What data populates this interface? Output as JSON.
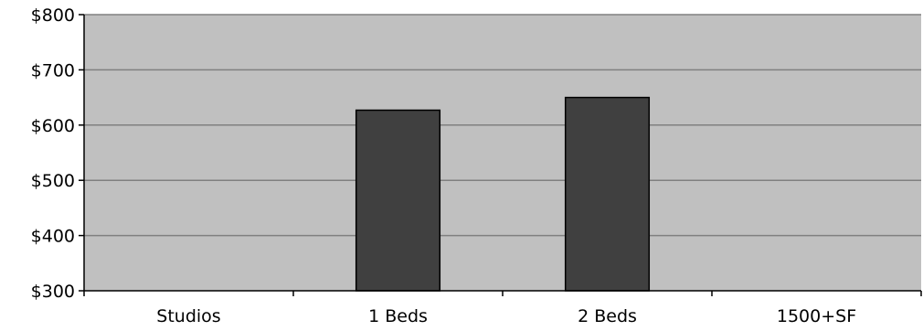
{
  "colors": {
    "plot_background": "#c0c0c0",
    "gridline": "#808080",
    "bar_fill": "#404040",
    "bar_stroke": "#000000",
    "axis": "#000000"
  },
  "chart_data": {
    "type": "bar",
    "title": "",
    "xlabel": "",
    "ylabel": "",
    "categories": [
      "Studios",
      "1 Beds",
      "2 Beds",
      "1500+SF"
    ],
    "values": [
      null,
      627,
      650,
      null
    ],
    "ylim": [
      300,
      800
    ],
    "yticks": [
      300,
      400,
      500,
      600,
      700,
      800
    ],
    "ytick_labels": [
      "$300",
      "$400",
      "$500",
      "$600",
      "$700",
      "$800"
    ],
    "grid": true,
    "legend": "none"
  }
}
